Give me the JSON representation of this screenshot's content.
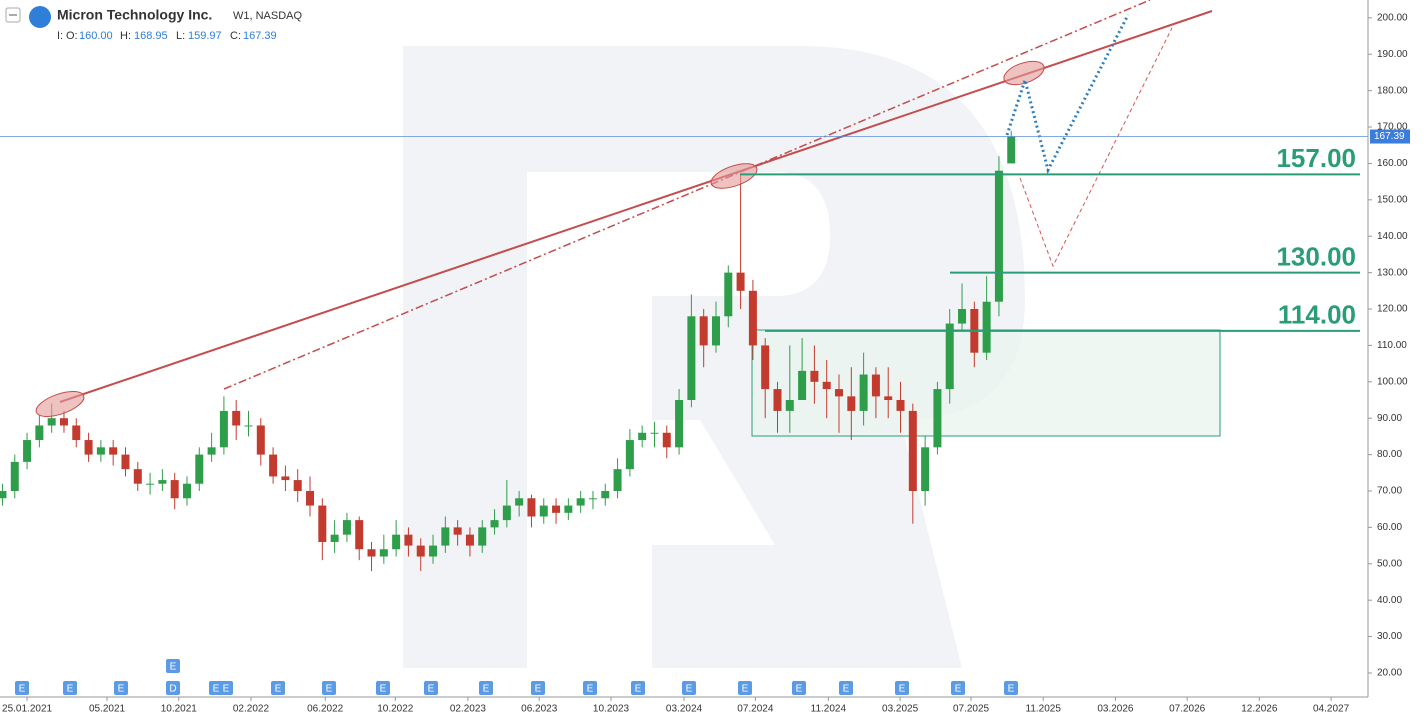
{
  "header": {
    "symbol": "Micron Technology Inc.",
    "meta": "W1, NASDAQ",
    "prefix": "I:",
    "o_label": "O:",
    "o": "160.00",
    "h_label": "H:",
    "h": "168.95",
    "l_label": "L:",
    "l": "159.97",
    "c_label": "C:",
    "c": "167.39"
  },
  "chart_data": {
    "type": "candlestick",
    "up_color": "#2e9e4a",
    "down_color": "#c23b2e",
    "xlim": [
      -6.6,
      327
    ],
    "xticks": [
      {
        "value": 0,
        "label": "25.01.2021"
      },
      {
        "value": 19.5,
        "label": "05.2021"
      },
      {
        "value": 37,
        "label": "10.2021"
      },
      {
        "value": 54.6,
        "label": "02.2022"
      },
      {
        "value": 72.7,
        "label": "06.2022"
      },
      {
        "value": 89.8,
        "label": "10.2022"
      },
      {
        "value": 107.5,
        "label": "02.2023"
      },
      {
        "value": 124.9,
        "label": "06.2023"
      },
      {
        "value": 142.4,
        "label": "10.2023"
      },
      {
        "value": 160.2,
        "label": "03.2024"
      },
      {
        "value": 177.6,
        "label": "07.2024"
      },
      {
        "value": 195.4,
        "label": "11.2024"
      },
      {
        "value": 212.9,
        "label": "03.2025"
      },
      {
        "value": 230.2,
        "label": "07.2025"
      },
      {
        "value": 247.8,
        "label": "11.2025"
      },
      {
        "value": 265.4,
        "label": "03.2026"
      },
      {
        "value": 282.9,
        "label": "07.2026"
      },
      {
        "value": 300.5,
        "label": "12.2026"
      },
      {
        "value": 318,
        "label": "04.2027"
      }
    ],
    "ylim": [
      13.4,
      204.9
    ],
    "yticks": [
      {
        "value": 20,
        "label": "20.00"
      },
      {
        "value": 30,
        "label": "30.00"
      },
      {
        "value": 40,
        "label": "40.00"
      },
      {
        "value": 50,
        "label": "50.00"
      },
      {
        "value": 60,
        "label": "60.00"
      },
      {
        "value": 70,
        "label": "70.00"
      },
      {
        "value": 80,
        "label": "80.00"
      },
      {
        "value": 90,
        "label": "90.00"
      },
      {
        "value": 100,
        "label": "100.00"
      },
      {
        "value": 110,
        "label": "110.00"
      },
      {
        "value": 120,
        "label": "120.00"
      },
      {
        "value": 130,
        "label": "130.00"
      },
      {
        "value": 140,
        "label": "140.00"
      },
      {
        "value": 150,
        "label": "150.00"
      },
      {
        "value": 160,
        "label": "160.00"
      },
      {
        "value": 170,
        "label": "170.00"
      },
      {
        "value": 180,
        "label": "180.00"
      },
      {
        "value": 190,
        "label": "190.00"
      },
      {
        "value": 200,
        "label": "200.00"
      }
    ],
    "price_line": {
      "value": 167.39,
      "label": "167.39"
    },
    "levels": [
      {
        "value": 157,
        "label": "157.00"
      },
      {
        "value": 130,
        "label": "130.00"
      },
      {
        "value": 114,
        "label": "114.00"
      }
    ],
    "candles": [
      [
        -6,
        68,
        72,
        66,
        70
      ],
      [
        -3,
        70,
        80,
        68,
        78
      ],
      [
        0,
        78,
        86,
        76,
        84
      ],
      [
        3,
        84,
        91,
        82,
        88
      ],
      [
        6,
        88,
        94,
        86,
        90
      ],
      [
        9,
        90,
        92,
        86,
        88
      ],
      [
        12,
        88,
        90,
        82,
        84
      ],
      [
        15,
        84,
        86,
        78,
        80
      ],
      [
        18,
        80,
        84,
        78,
        82
      ],
      [
        21,
        82,
        84,
        77,
        80
      ],
      [
        24,
        80,
        82,
        74,
        76
      ],
      [
        27,
        76,
        78,
        70,
        72
      ],
      [
        30,
        72,
        75,
        69,
        72
      ],
      [
        33,
        72,
        76,
        70,
        73
      ],
      [
        36,
        73,
        75,
        65,
        68
      ],
      [
        39,
        68,
        74,
        66,
        72
      ],
      [
        42,
        72,
        82,
        70,
        80
      ],
      [
        45,
        80,
        86,
        78,
        82
      ],
      [
        48,
        82,
        96,
        80,
        92
      ],
      [
        51,
        92,
        95,
        84,
        88
      ],
      [
        54,
        88,
        92,
        85,
        88
      ],
      [
        57,
        88,
        90,
        77,
        80
      ],
      [
        60,
        80,
        82,
        72,
        74
      ],
      [
        63,
        74,
        77,
        70,
        73
      ],
      [
        66,
        73,
        76,
        67,
        70
      ],
      [
        69,
        70,
        74,
        63,
        66
      ],
      [
        72,
        66,
        68,
        51,
        56
      ],
      [
        75,
        56,
        62,
        53,
        58
      ],
      [
        78,
        58,
        64,
        56,
        62
      ],
      [
        81,
        62,
        63,
        51,
        54
      ],
      [
        84,
        54,
        56,
        48,
        52
      ],
      [
        87,
        52,
        58,
        50,
        54
      ],
      [
        90,
        54,
        62,
        52,
        58
      ],
      [
        93,
        58,
        60,
        52,
        55
      ],
      [
        96,
        55,
        57,
        48,
        52
      ],
      [
        99,
        52,
        58,
        50,
        55
      ],
      [
        102,
        55,
        63,
        53,
        60
      ],
      [
        105,
        60,
        62,
        55,
        58
      ],
      [
        108,
        58,
        60,
        52,
        55
      ],
      [
        111,
        55,
        62,
        53,
        60
      ],
      [
        114,
        60,
        65,
        58,
        62
      ],
      [
        117,
        62,
        73,
        60,
        66
      ],
      [
        120,
        66,
        70,
        63,
        68
      ],
      [
        123,
        68,
        69,
        60,
        63
      ],
      [
        126,
        63,
        68,
        61,
        66
      ],
      [
        129,
        66,
        68,
        61,
        64
      ],
      [
        132,
        64,
        68,
        62,
        66
      ],
      [
        135,
        66,
        70,
        64,
        68
      ],
      [
        138,
        68,
        70,
        65,
        68
      ],
      [
        141,
        68,
        72,
        66,
        70
      ],
      [
        144,
        70,
        79,
        68,
        76
      ],
      [
        147,
        76,
        87,
        74,
        84
      ],
      [
        150,
        84,
        88,
        82,
        86
      ],
      [
        153,
        86,
        89,
        82,
        86
      ],
      [
        156,
        86,
        88,
        79,
        82
      ],
      [
        159,
        82,
        98,
        80,
        95
      ],
      [
        162,
        95,
        124,
        93,
        118
      ],
      [
        165,
        118,
        120,
        104,
        110
      ],
      [
        168,
        110,
        122,
        108,
        118
      ],
      [
        171,
        118,
        132,
        115,
        130
      ],
      [
        174,
        130,
        157,
        120,
        125
      ],
      [
        177,
        125,
        128,
        106,
        110
      ],
      [
        180,
        110,
        112,
        90,
        98
      ],
      [
        183,
        98,
        100,
        86,
        92
      ],
      [
        186,
        92,
        110,
        86,
        95
      ],
      [
        189,
        95,
        112,
        96,
        103
      ],
      [
        192,
        103,
        110,
        94,
        100
      ],
      [
        195,
        100,
        106,
        90,
        98
      ],
      [
        198,
        98,
        102,
        86,
        96
      ],
      [
        201,
        96,
        104,
        84,
        92
      ],
      [
        204,
        92,
        108,
        88,
        102
      ],
      [
        207,
        102,
        104,
        90,
        96
      ],
      [
        210,
        96,
        104,
        90,
        95
      ],
      [
        213,
        95,
        100,
        86,
        92
      ],
      [
        216,
        92,
        94,
        61,
        70
      ],
      [
        219,
        70,
        85,
        66,
        82
      ],
      [
        222,
        82,
        100,
        80,
        98
      ],
      [
        225,
        98,
        120,
        94,
        116
      ],
      [
        228,
        116,
        127,
        114,
        120
      ],
      [
        231,
        120,
        122,
        104,
        108
      ],
      [
        234,
        108,
        129,
        106,
        122
      ],
      [
        237,
        122,
        162,
        118,
        158
      ],
      [
        240,
        160,
        168.95,
        159.97,
        167.39
      ]
    ]
  },
  "events": [
    "E",
    "E",
    "E",
    "E",
    "D",
    "E",
    "E",
    "E",
    "E",
    "E",
    "E",
    "E",
    "E",
    "E",
    "E",
    "E",
    "E",
    "E",
    "E",
    "E",
    "E",
    "E"
  ]
}
